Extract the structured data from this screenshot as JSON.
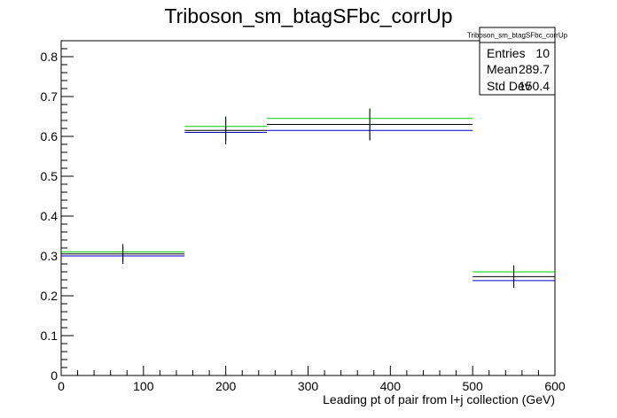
{
  "chart_data": {
    "type": "histogram",
    "title": "Triboson_sm_btagSFbc_corrUp",
    "xlabel": "Leading pt of pair from l+j collection (GeV)",
    "ylabel": "",
    "xlim": [
      0,
      600
    ],
    "ylim": [
      0,
      0.84
    ],
    "x_ticks": [
      "0",
      "100",
      "200",
      "300",
      "400",
      "500",
      "600"
    ],
    "y_ticks": [
      "0",
      "0.1",
      "0.2",
      "0.3",
      "0.4",
      "0.5",
      "0.6",
      "0.7",
      "0.8"
    ],
    "grid": false,
    "colors": {
      "nominal": "#000000",
      "up": "#00cc00",
      "down": "#0000cc"
    },
    "bins": [
      {
        "x_low": 0,
        "x_high": 150,
        "x_center": 75,
        "nominal": 0.305,
        "up": 0.31,
        "down": 0.3,
        "err": 0.025
      },
      {
        "x_low": 150,
        "x_high": 250,
        "x_center": 200,
        "nominal": 0.615,
        "up": 0.625,
        "down": 0.61,
        "err": 0.035
      },
      {
        "x_low": 250,
        "x_high": 500,
        "x_center": 375,
        "nominal": 0.63,
        "up": 0.645,
        "down": 0.615,
        "err": 0.04
      },
      {
        "x_low": 500,
        "x_high": 600,
        "x_center": 550,
        "nominal": 0.248,
        "up": 0.26,
        "down": 0.238,
        "err": 0.028
      }
    ],
    "stats_box": {
      "title": "Triboson_sm_btagSFbc_corrUp",
      "entries_label": "Entries",
      "entries_value": "10",
      "mean_label": "Mean",
      "mean_value": "289.7",
      "stddev_label": "Std Dev",
      "stddev_value": "150.4"
    }
  }
}
